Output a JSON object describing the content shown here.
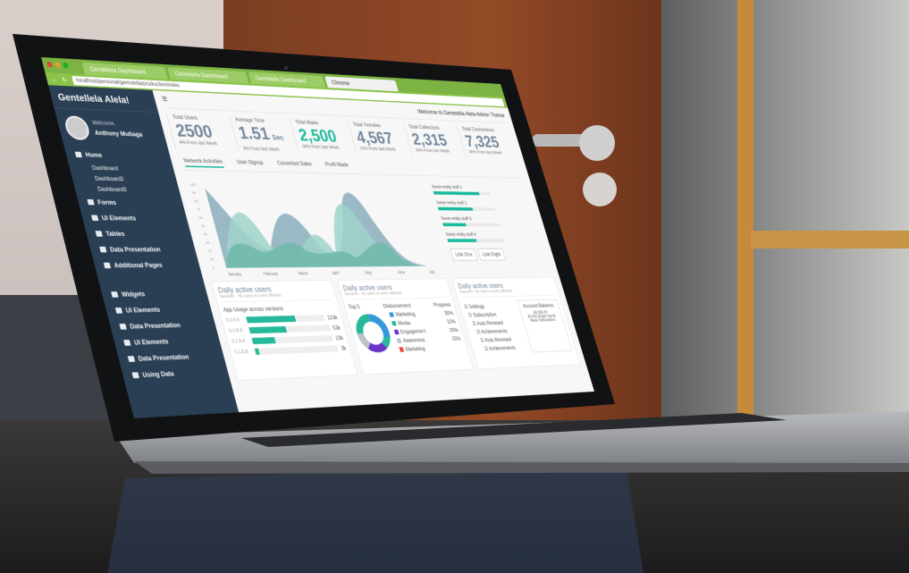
{
  "browser": {
    "tabs": [
      "Gentellela Dashboard",
      "Gentelella Dashboard",
      "Gentelella Dashboard",
      "Chrome"
    ],
    "url": "localhost/personal/gentelella/production/index"
  },
  "sidebar": {
    "brand": "Gentellela Alela!",
    "welcome": "Welcome,",
    "user": "Anthony Mutiaga",
    "items": [
      {
        "label": "Home"
      },
      {
        "label": "Dashboard",
        "sub": true
      },
      {
        "label": "Dashboard2",
        "sub": true
      },
      {
        "label": "Dashboard3",
        "sub": true
      },
      {
        "label": "Forms"
      },
      {
        "label": "UI Elements"
      },
      {
        "label": "Tables"
      },
      {
        "label": "Data Presentation"
      },
      {
        "label": "Additional Pages"
      },
      {
        "label": "Widgets",
        "gap": true
      },
      {
        "label": "UI Elements"
      },
      {
        "label": "Data Presentation"
      },
      {
        "label": "UI Elements"
      },
      {
        "label": "Data Presentation"
      },
      {
        "label": "Using Data"
      }
    ]
  },
  "topbar": {
    "menu_icon": "hamburger-icon",
    "welcome": "Welcome to Gentelella Alela Admin Theme"
  },
  "stats": [
    {
      "label": "Total Users",
      "value": "2500",
      "sub": "4% From last Week"
    },
    {
      "label": "Average Time",
      "value": "1.51",
      "unit": "Sec",
      "sub": "3% From last Week"
    },
    {
      "label": "Total Males",
      "value": "2,500",
      "sub": "34% From last Week",
      "green": true
    },
    {
      "label": "Total Females",
      "value": "4,567",
      "sub": "12% From last Week"
    },
    {
      "label": "Total Collections",
      "value": "2,315",
      "sub": "34% From last Week"
    },
    {
      "label": "Total Connections",
      "value": "7,325",
      "sub": "34% From last Week"
    }
  ],
  "chart_tabs": [
    "Network Activities",
    "User Signup",
    "Converted Sales",
    "Profit Made"
  ],
  "chart": {
    "months": [
      "January",
      "February",
      "March",
      "April",
      "May",
      "June",
      "July"
    ],
    "yticks": [
      "0",
      "10",
      "20",
      "30",
      "40",
      "50",
      "60",
      "70",
      "80",
      "90",
      "100"
    ],
    "colors": [
      "#8aaebc",
      "#6fb8a9",
      "#9fd4c9"
    ]
  },
  "progress": [
    {
      "label": "Some entity stuff 1",
      "value": 0.8
    },
    {
      "label": "Some entity stuff 2",
      "value": 0.6
    },
    {
      "label": "Some entity stuff 3",
      "value": 0.4
    },
    {
      "label": "Some entity stuff 4",
      "value": 0.5
    }
  ],
  "links": [
    "Link One",
    "Link Eight"
  ],
  "panels": {
    "p1": {
      "title": "Daily active users",
      "note": "No users vs users affected",
      "sessions": "Sessions",
      "heading": "App Usage across versions",
      "rows": [
        {
          "label": "0.1.5.6",
          "value": "123k",
          "fill": 0.62
        },
        {
          "label": "0.1.5.6",
          "value": "53k",
          "fill": 0.45
        },
        {
          "label": "0.1.5.6",
          "value": "23k",
          "fill": 0.28
        },
        {
          "label": "0.1.5.6",
          "value": "3k",
          "fill": 0.04
        }
      ]
    },
    "p2": {
      "title": "Daily active users",
      "note": "No users vs users affected",
      "sessions": "Sessions",
      "col1": "Top 5",
      "col2": "Disbursement",
      "col3": "Progress",
      "legend": [
        {
          "label": "Marketing",
          "pct": "30%",
          "color": "#3498db"
        },
        {
          "label": "Media",
          "pct": "10%",
          "color": "#26b99a"
        },
        {
          "label": "Engagement",
          "pct": "20%",
          "color": "#6c34c6"
        },
        {
          "label": "Awareness",
          "pct": "15%",
          "color": "#bdc3c7"
        },
        {
          "label": "Marketing",
          "pct": "",
          "color": "#e74c3c"
        }
      ]
    },
    "p3": {
      "title": "Daily active users",
      "note": "No users vs users affected",
      "sessions": "Sessions",
      "items": [
        "Settings",
        "Subscription",
        "Auto Renewal",
        "Achievements",
        "Auto Renewal",
        "Achievements"
      ],
      "account_title": "Account Balance:",
      "line1": "€0.000 (P)",
      "line2": "€0.000 (P)per month",
      "line3": "Basic Subscription"
    }
  }
}
